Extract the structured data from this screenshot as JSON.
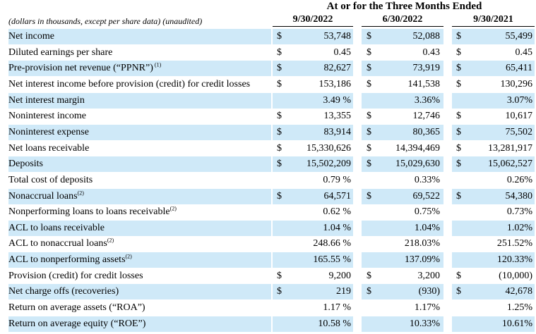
{
  "header": {
    "title": "At or for the Three Months Ended",
    "note": "(dollars in thousands, except per share data) (unaudited)",
    "periods": [
      "9/30/2022",
      "6/30/2022",
      "9/30/2021"
    ]
  },
  "rows": [
    {
      "label": "Net income",
      "footnote": "",
      "cells": [
        {
          "d": "$",
          "v": "53,748"
        },
        {
          "d": "$",
          "v": "52,088"
        },
        {
          "d": "$",
          "v": "55,499"
        }
      ]
    },
    {
      "label": "Diluted earnings per share",
      "footnote": "",
      "cells": [
        {
          "d": "$",
          "v": "0.45"
        },
        {
          "d": "$",
          "v": "0.43"
        },
        {
          "d": "$",
          "v": "0.45"
        }
      ]
    },
    {
      "label": "Pre-provision net revenue (“PPNR”)",
      "footnote": " (1)",
      "cells": [
        {
          "d": "$",
          "v": "82,627"
        },
        {
          "d": "$",
          "v": "73,919"
        },
        {
          "d": "$",
          "v": "65,411"
        }
      ]
    },
    {
      "label": "Net interest income before provision (credit) for credit losses",
      "footnote": "",
      "cells": [
        {
          "d": "$",
          "v": "153,186"
        },
        {
          "d": "$",
          "v": "141,538"
        },
        {
          "d": "$",
          "v": "130,296"
        }
      ]
    },
    {
      "label": "Net interest margin",
      "footnote": "",
      "cells": [
        {
          "d": "",
          "v": "3.49 %"
        },
        {
          "d": "",
          "v": "3.36%"
        },
        {
          "d": "",
          "v": "3.07%"
        }
      ]
    },
    {
      "label": "Noninterest income",
      "footnote": "",
      "cells": [
        {
          "d": "$",
          "v": "13,355"
        },
        {
          "d": "$",
          "v": "12,746"
        },
        {
          "d": "$",
          "v": "10,617"
        }
      ]
    },
    {
      "label": "Noninterest expense",
      "footnote": "",
      "cells": [
        {
          "d": "$",
          "v": "83,914"
        },
        {
          "d": "$",
          "v": "80,365"
        },
        {
          "d": "$",
          "v": "75,502"
        }
      ]
    },
    {
      "label": "Net loans receivable",
      "footnote": "",
      "cells": [
        {
          "d": "$",
          "v": "15,330,626"
        },
        {
          "d": "$",
          "v": "14,394,469"
        },
        {
          "d": "$",
          "v": "13,281,917"
        }
      ]
    },
    {
      "label": "Deposits",
      "footnote": "",
      "cells": [
        {
          "d": "$",
          "v": "15,502,209"
        },
        {
          "d": "$",
          "v": "15,029,630"
        },
        {
          "d": "$",
          "v": "15,062,527"
        }
      ]
    },
    {
      "label": "Total cost of deposits",
      "footnote": "",
      "cells": [
        {
          "d": "",
          "v": "0.79 %"
        },
        {
          "d": "",
          "v": "0.33%"
        },
        {
          "d": "",
          "v": "0.26%"
        }
      ]
    },
    {
      "label": "Nonaccrual loans",
      "footnote": "(2)",
      "cells": [
        {
          "d": "$",
          "v": "64,571"
        },
        {
          "d": "$",
          "v": "69,522"
        },
        {
          "d": "$",
          "v": "54,380"
        }
      ]
    },
    {
      "label": "Nonperforming loans to loans receivable",
      "footnote": "(2)",
      "cells": [
        {
          "d": "",
          "v": "0.62 %"
        },
        {
          "d": "",
          "v": "0.75%"
        },
        {
          "d": "",
          "v": "0.73%"
        }
      ]
    },
    {
      "label": "ACL to loans receivable",
      "footnote": "",
      "cells": [
        {
          "d": "",
          "v": "1.04 %"
        },
        {
          "d": "",
          "v": "1.04%"
        },
        {
          "d": "",
          "v": "1.02%"
        }
      ]
    },
    {
      "label": "ACL to nonaccrual loans",
      "footnote": "(2)",
      "cells": [
        {
          "d": "",
          "v": "248.66 %"
        },
        {
          "d": "",
          "v": "218.03%"
        },
        {
          "d": "",
          "v": "251.52%"
        }
      ]
    },
    {
      "label": "ACL to nonperforming assets",
      "footnote": "(2)",
      "cells": [
        {
          "d": "",
          "v": "165.55 %"
        },
        {
          "d": "",
          "v": "137.09%"
        },
        {
          "d": "",
          "v": "120.33%"
        }
      ]
    },
    {
      "label": "Provision (credit) for credit losses",
      "footnote": "",
      "cells": [
        {
          "d": "$",
          "v": "9,200"
        },
        {
          "d": "$",
          "v": "3,200"
        },
        {
          "d": "$",
          "v": "(10,000)"
        }
      ]
    },
    {
      "label": "Net charge offs (recoveries)",
      "footnote": "",
      "cells": [
        {
          "d": "$",
          "v": "219"
        },
        {
          "d": "$",
          "v": "(930)"
        },
        {
          "d": "$",
          "v": "42,678"
        }
      ]
    },
    {
      "label": "Return on average assets (“ROA”)",
      "footnote": "",
      "cells": [
        {
          "d": "",
          "v": "1.17 %"
        },
        {
          "d": "",
          "v": "1.17%"
        },
        {
          "d": "",
          "v": "1.25%"
        }
      ]
    },
    {
      "label": "Return on average equity (“ROE”)",
      "footnote": "",
      "cells": [
        {
          "d": "",
          "v": "10.58 %"
        },
        {
          "d": "",
          "v": "10.33%"
        },
        {
          "d": "",
          "v": "10.61%"
        }
      ]
    }
  ]
}
